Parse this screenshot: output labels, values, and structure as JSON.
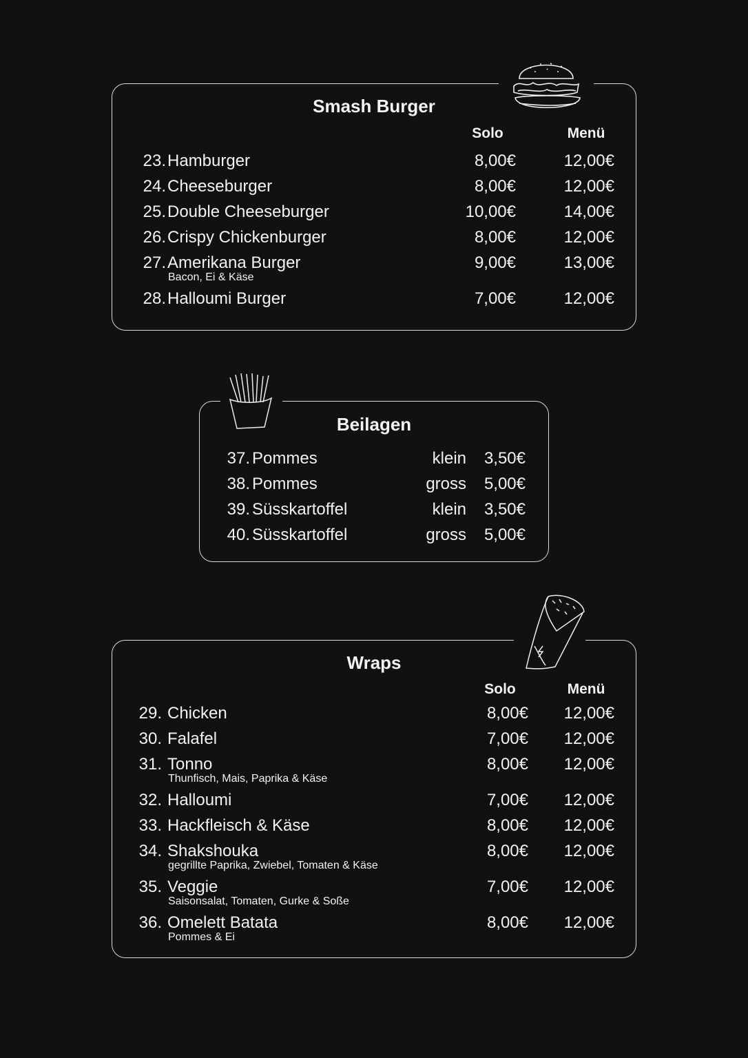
{
  "sections": {
    "burger": {
      "title": "Smash Burger",
      "icon": "burger-icon",
      "headers": {
        "solo": "Solo",
        "menu": "Menü"
      },
      "items": [
        {
          "num": "23.",
          "name": "Hamburger",
          "solo": "8,00€",
          "menu": "12,00€"
        },
        {
          "num": "24.",
          "name": "Cheeseburger",
          "solo": "8,00€",
          "menu": "12,00€"
        },
        {
          "num": "25.",
          "name": "Double Cheeseburger",
          "solo": "10,00€",
          "menu": "14,00€"
        },
        {
          "num": "26.",
          "name": "Crispy Chickenburger",
          "solo": "8,00€",
          "menu": "12,00€"
        },
        {
          "num": "27.",
          "name": "Amerikana Burger",
          "desc": "Bacon, Ei & Käse",
          "solo": "9,00€",
          "menu": "13,00€"
        },
        {
          "num": "28.",
          "name": "Halloumi Burger",
          "solo": "7,00€",
          "menu": "12,00€"
        }
      ]
    },
    "sides": {
      "title": "Beilagen",
      "icon": "fries-icon",
      "items": [
        {
          "num": "37.",
          "name": "Pommes",
          "size": "klein",
          "price": "3,50€"
        },
        {
          "num": "38.",
          "name": "Pommes",
          "size": "gross",
          "price": "5,00€"
        },
        {
          "num": "39.",
          "name": "Süsskartoffel",
          "size": "klein",
          "price": "3,50€"
        },
        {
          "num": "40.",
          "name": "Süsskartoffel",
          "size": "gross",
          "price": "5,00€"
        }
      ]
    },
    "wraps": {
      "title": "Wraps",
      "icon": "wrap-icon",
      "headers": {
        "solo": "Solo",
        "menu": "Menü"
      },
      "items": [
        {
          "num": "29.",
          "name": "Chicken",
          "solo": "8,00€",
          "menu": "12,00€"
        },
        {
          "num": "30.",
          "name": "Falafel",
          "solo": "7,00€",
          "menu": "12,00€"
        },
        {
          "num": "31.",
          "name": "Tonno",
          "desc": "Thunfisch, Mais, Paprika & Käse",
          "solo": "8,00€",
          "menu": "12,00€"
        },
        {
          "num": "32.",
          "name": "Halloumi",
          "solo": "7,00€",
          "menu": "12,00€"
        },
        {
          "num": "33.",
          "name": "Hackfleisch & Käse",
          "solo": "8,00€",
          "menu": "12,00€"
        },
        {
          "num": "34.",
          "name": "Shakshouka",
          "desc": "gegrillte Paprika, Zwiebel, Tomaten & Käse",
          "solo": "8,00€",
          "menu": "12,00€"
        },
        {
          "num": "35.",
          "name": "Veggie",
          "desc": "Saisonsalat, Tomaten, Gurke & Soße",
          "solo": "7,00€",
          "menu": "12,00€"
        },
        {
          "num": "36.",
          "name": "Omelett Batata",
          "desc": "Pommes & Ei",
          "solo": "8,00€",
          "menu": "12,00€"
        }
      ]
    }
  }
}
